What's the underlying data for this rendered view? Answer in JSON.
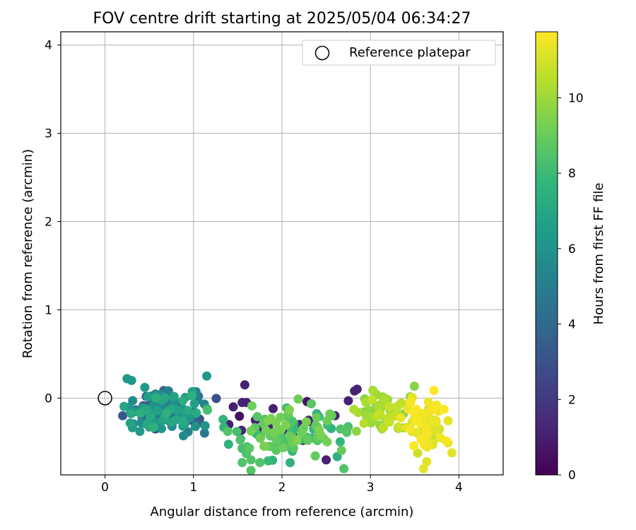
{
  "chart_data": {
    "type": "scatter",
    "title": "FOV centre drift starting at 2025/05/04 06:34:27",
    "xlabel": "Angular distance from reference (arcmin)",
    "ylabel": "Rotation from reference (arcmin)",
    "xlim": [
      -0.5,
      4.5
    ],
    "ylim": [
      -0.87,
      4.15
    ],
    "xticks": [
      "0",
      "1",
      "2",
      "3",
      "4"
    ],
    "yticks": [
      "0",
      "1",
      "2",
      "3",
      "4"
    ],
    "grid": true,
    "legend": {
      "position": "top-right",
      "entries": [
        "Reference platepar"
      ]
    },
    "reference_point": {
      "x": 0,
      "y": 0
    },
    "colorbar": {
      "label": "Hours from first FF file",
      "colormap": "viridis",
      "range": [
        0,
        11.75
      ],
      "ticks": [
        "0",
        "2",
        "4",
        "6",
        "8",
        "10"
      ]
    },
    "series": [
      {
        "color_by": "hours",
        "groups": [
          {
            "hours_range": [
              0.0,
              2.2
            ],
            "x_range": [
              1.3,
              2.9
            ],
            "y_range": [
              -0.7,
              0.15
            ],
            "count": 30,
            "points": [
              [
                1.6,
                -0.05
              ],
              [
                1.58,
                0.15
              ],
              [
                1.55,
                -0.05
              ],
              [
                1.9,
                -0.12
              ],
              [
                2.5,
                -0.7
              ],
              [
                2.85,
                0.1
              ],
              [
                2.82,
                0.08
              ],
              [
                2.75,
                -0.03
              ],
              [
                1.4,
                -0.3
              ],
              [
                1.85,
                -0.28
              ],
              [
                2.2,
                -0.3
              ],
              [
                2.4,
                -0.35
              ],
              [
                1.7,
                -0.25
              ],
              [
                2.05,
                -0.32
              ],
              [
                2.6,
                -0.2
              ],
              [
                1.45,
                -0.1
              ],
              [
                2.3,
                -0.25
              ],
              [
                1.95,
                -0.4
              ],
              [
                1.75,
                -0.35
              ]
            ]
          },
          {
            "hours_range": [
              2.2,
              5.0
            ],
            "x_range": [
              0.1,
              1.3
            ],
            "y_range": [
              -0.5,
              0.2
            ],
            "count": 60
          },
          {
            "hours_range": [
              5.0,
              7.5
            ],
            "x_range": [
              0.0,
              1.4
            ],
            "y_range": [
              -0.5,
              0.25
            ],
            "count": 90,
            "points": [
              [
                0.25,
                0.22
              ],
              [
                1.15,
                0.25
              ],
              [
                0.3,
                0.2
              ],
              [
                0.45,
                0.12
              ]
            ]
          },
          {
            "hours_range": [
              7.5,
              9.5
            ],
            "x_range": [
              1.0,
              3.1
            ],
            "y_range": [
              -0.83,
              0.1
            ],
            "count": 110,
            "points": [
              [
                1.65,
                -0.82
              ],
              [
                2.7,
                -0.8
              ],
              [
                1.55,
                -0.73
              ],
              [
                1.75,
                -0.73
              ],
              [
                1.65,
                -0.7
              ]
            ]
          },
          {
            "hours_range": [
              9.5,
              10.8
            ],
            "x_range": [
              2.7,
              3.6
            ],
            "y_range": [
              -0.5,
              0.2
            ],
            "count": 60
          },
          {
            "hours_range": [
              10.8,
              11.75
            ],
            "x_range": [
              3.25,
              3.95
            ],
            "y_range": [
              -0.8,
              0.15
            ],
            "count": 70,
            "points": [
              [
                3.6,
                -0.8
              ],
              [
                3.92,
                -0.62
              ]
            ]
          }
        ]
      }
    ]
  }
}
